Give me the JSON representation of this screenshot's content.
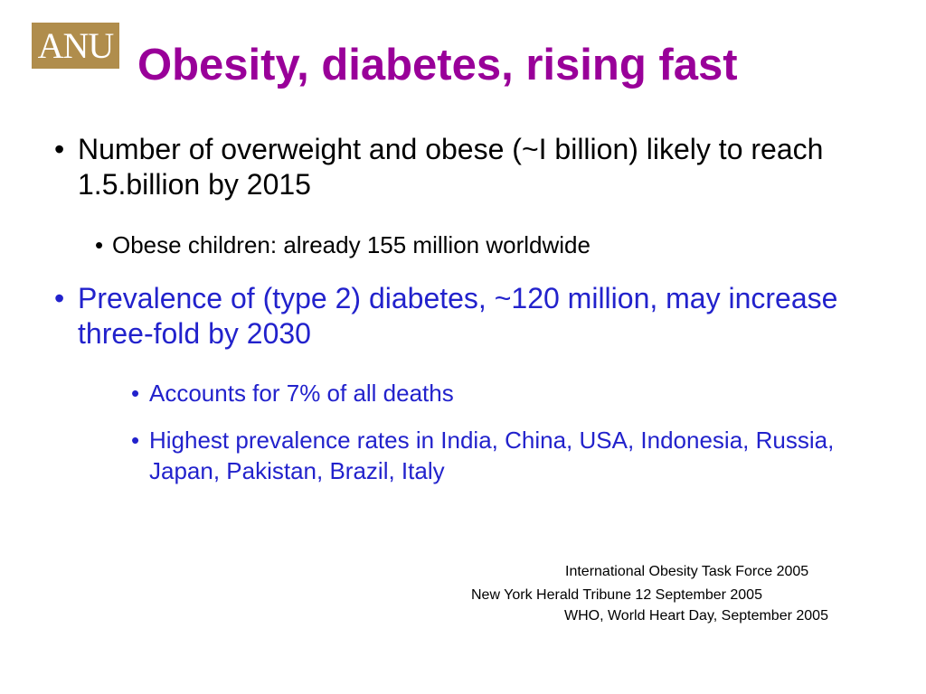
{
  "logo": {
    "text": "ANU",
    "background_color": "#b08d4c"
  },
  "title": {
    "text": "Obesity, diabetes, rising fast",
    "color": "#990099"
  },
  "bullet_symbol": "•",
  "bullets": [
    {
      "text": "Number of overweight and obese (~I billion) likely to reach 1.5.billion by 2015",
      "color": "#000000",
      "subbullets": [
        {
          "text": "Obese children: already 155 million worldwide"
        }
      ]
    },
    {
      "text": "Prevalence of (type 2) diabetes, ~120 million, may increase three-fold by 2030",
      "color": "#2222cc",
      "subbullets": [
        {
          "text": "Accounts for 7% of all deaths"
        },
        {
          "text": "Highest prevalence rates in India, China, USA, Indonesia, Russia, Japan, Pakistan, Brazil, Italy"
        }
      ]
    }
  ],
  "references": [
    "International Obesity Task Force 2005",
    "New York Herald Tribune 12 September 2005",
    "WHO, World Heart Day, September 2005"
  ]
}
